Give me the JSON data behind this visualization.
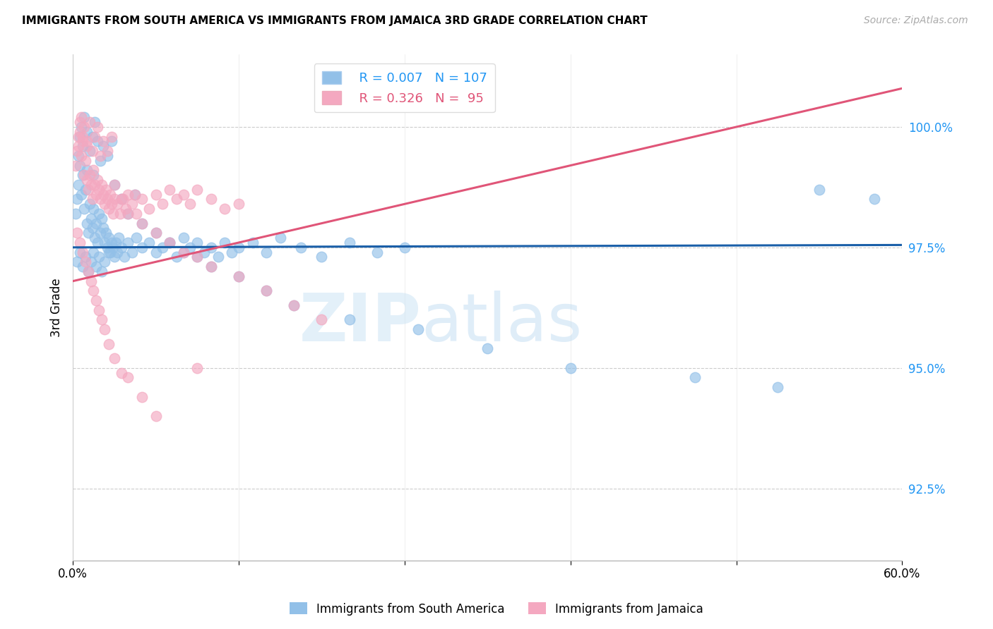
{
  "title": "IMMIGRANTS FROM SOUTH AMERICA VS IMMIGRANTS FROM JAMAICA 3RD GRADE CORRELATION CHART",
  "source": "Source: ZipAtlas.com",
  "xlabel_blue": "Immigrants from South America",
  "xlabel_pink": "Immigrants from Jamaica",
  "ylabel": "3rd Grade",
  "xlim": [
    0.0,
    60.0
  ],
  "ylim": [
    91.0,
    101.5
  ],
  "yticks": [
    92.5,
    95.0,
    97.5,
    100.0
  ],
  "xticks": [
    0.0,
    12.0,
    24.0,
    36.0,
    48.0,
    60.0
  ],
  "blue_color": "#92C0E8",
  "pink_color": "#F4A8C0",
  "blue_line_color": "#1A5FA8",
  "pink_line_color": "#E05578",
  "legend_blue_R": "0.007",
  "legend_blue_N": "107",
  "legend_pink_R": "0.326",
  "legend_pink_N": " 95",
  "watermark_zip": "ZIP",
  "watermark_atlas": "atlas",
  "blue_reg_x0": 0.0,
  "blue_reg_y0": 97.5,
  "blue_reg_x1": 60.0,
  "blue_reg_y1": 97.55,
  "pink_reg_x0": 0.0,
  "pink_reg_y0": 96.8,
  "pink_reg_x1": 60.0,
  "pink_reg_y1": 100.8,
  "blue_x": [
    0.2,
    0.3,
    0.4,
    0.5,
    0.6,
    0.7,
    0.8,
    0.9,
    1.0,
    1.0,
    1.1,
    1.2,
    1.3,
    1.4,
    1.5,
    1.5,
    1.6,
    1.7,
    1.8,
    1.9,
    2.0,
    2.1,
    2.2,
    2.3,
    2.4,
    2.5,
    2.6,
    2.7,
    2.8,
    2.9,
    3.0,
    3.1,
    3.2,
    3.3,
    3.5,
    3.7,
    4.0,
    4.3,
    4.6,
    5.0,
    5.5,
    6.0,
    6.5,
    7.0,
    7.5,
    8.0,
    8.5,
    9.0,
    9.5,
    10.0,
    10.5,
    11.0,
    11.5,
    12.0,
    13.0,
    14.0,
    15.0,
    16.5,
    18.0,
    20.0,
    22.0,
    24.0,
    0.4,
    0.5,
    0.6,
    0.7,
    0.8,
    1.0,
    1.2,
    1.4,
    1.6,
    1.8,
    2.0,
    2.2,
    2.5,
    2.8,
    3.0,
    3.5,
    4.0,
    4.5,
    5.0,
    6.0,
    7.0,
    8.0,
    9.0,
    10.0,
    12.0,
    14.0,
    16.0,
    20.0,
    25.0,
    30.0,
    36.0,
    45.0,
    51.0,
    54.0,
    58.0,
    0.3,
    0.5,
    0.7,
    0.9,
    1.1,
    1.3,
    1.5,
    1.7,
    1.9,
    2.1,
    2.3,
    2.6
  ],
  "blue_y": [
    98.2,
    98.5,
    98.8,
    99.2,
    98.6,
    99.0,
    98.3,
    98.7,
    98.0,
    99.1,
    97.8,
    98.4,
    98.1,
    97.9,
    98.3,
    99.0,
    97.7,
    98.0,
    97.6,
    98.2,
    97.8,
    98.1,
    97.9,
    97.6,
    97.8,
    97.5,
    97.7,
    97.4,
    97.6,
    97.5,
    97.3,
    97.6,
    97.4,
    97.7,
    97.5,
    97.3,
    97.6,
    97.4,
    97.7,
    97.5,
    97.6,
    97.4,
    97.5,
    97.6,
    97.3,
    97.7,
    97.5,
    97.6,
    97.4,
    97.5,
    97.3,
    97.6,
    97.4,
    97.5,
    97.6,
    97.4,
    97.7,
    97.5,
    97.3,
    97.6,
    97.4,
    97.5,
    99.4,
    99.8,
    100.0,
    99.6,
    100.2,
    99.9,
    99.5,
    99.8,
    100.1,
    99.7,
    99.3,
    99.6,
    99.4,
    99.7,
    98.8,
    98.5,
    98.2,
    98.6,
    98.0,
    97.8,
    97.6,
    97.4,
    97.3,
    97.1,
    96.9,
    96.6,
    96.3,
    96.0,
    95.8,
    95.4,
    95.0,
    94.8,
    94.6,
    98.7,
    98.5,
    97.2,
    97.4,
    97.1,
    97.3,
    97.0,
    97.2,
    97.4,
    97.1,
    97.3,
    97.0,
    97.2,
    97.4
  ],
  "pink_x": [
    0.2,
    0.3,
    0.4,
    0.5,
    0.6,
    0.7,
    0.8,
    0.9,
    1.0,
    1.0,
    1.1,
    1.2,
    1.3,
    1.4,
    1.5,
    1.6,
    1.7,
    1.8,
    1.9,
    2.0,
    2.1,
    2.2,
    2.3,
    2.4,
    2.5,
    2.6,
    2.7,
    2.8,
    2.9,
    3.0,
    3.2,
    3.4,
    3.6,
    3.8,
    4.0,
    4.3,
    4.6,
    5.0,
    5.5,
    6.0,
    6.5,
    7.0,
    7.5,
    8.0,
    8.5,
    9.0,
    10.0,
    11.0,
    12.0,
    0.4,
    0.5,
    0.6,
    0.7,
    0.8,
    1.0,
    1.2,
    1.4,
    1.6,
    1.8,
    2.0,
    2.2,
    2.5,
    2.8,
    3.0,
    3.5,
    4.0,
    4.5,
    5.0,
    6.0,
    7.0,
    8.0,
    9.0,
    10.0,
    12.0,
    14.0,
    16.0,
    18.0,
    0.3,
    0.5,
    0.7,
    0.9,
    1.1,
    1.3,
    1.5,
    1.7,
    1.9,
    2.1,
    2.3,
    2.6,
    3.0,
    3.5,
    4.0,
    5.0,
    6.0,
    9.0
  ],
  "pink_y": [
    99.2,
    99.5,
    99.8,
    100.1,
    99.4,
    99.7,
    99.0,
    99.3,
    98.9,
    99.6,
    98.7,
    99.0,
    98.8,
    98.5,
    99.1,
    98.8,
    98.6,
    98.9,
    98.7,
    98.5,
    98.8,
    98.6,
    98.4,
    98.7,
    98.5,
    98.3,
    98.6,
    98.4,
    98.2,
    98.5,
    98.4,
    98.2,
    98.5,
    98.3,
    98.6,
    98.4,
    98.2,
    98.5,
    98.3,
    98.6,
    98.4,
    98.7,
    98.5,
    98.6,
    98.4,
    98.7,
    98.5,
    98.3,
    98.4,
    99.6,
    99.9,
    100.2,
    99.8,
    100.0,
    99.7,
    100.1,
    99.5,
    99.8,
    100.0,
    99.4,
    99.7,
    99.5,
    99.8,
    98.8,
    98.5,
    98.2,
    98.6,
    98.0,
    97.8,
    97.6,
    97.4,
    97.3,
    97.1,
    96.9,
    96.6,
    96.3,
    96.0,
    97.8,
    97.6,
    97.4,
    97.2,
    97.0,
    96.8,
    96.6,
    96.4,
    96.2,
    96.0,
    95.8,
    95.5,
    95.2,
    94.9,
    94.8,
    94.4,
    94.0,
    95.0
  ]
}
